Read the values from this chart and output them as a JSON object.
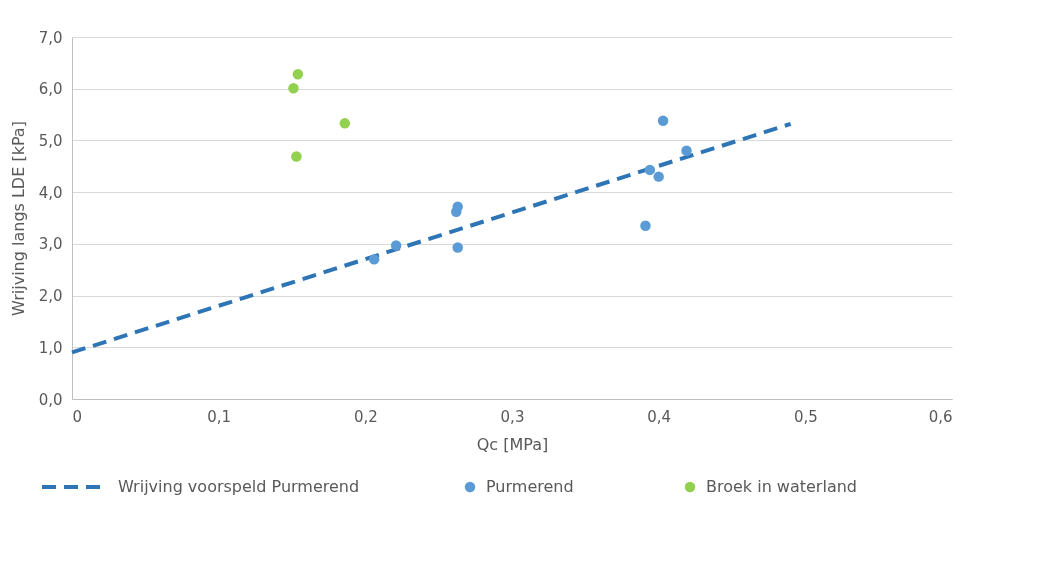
{
  "chart_data": {
    "type": "scatter",
    "xlabel": "Qc [MPa]",
    "ylabel": "Wrijving langs LDE [kPa]",
    "xlim": [
      0,
      0.6
    ],
    "xticks": [
      0,
      {
        "value": 0.1,
        "label": "0,1"
      },
      {
        "value": 0.2,
        "label": "0,2"
      },
      {
        "value": 0.3,
        "label": "0,3"
      },
      {
        "value": 0.4,
        "label": "0,4"
      },
      {
        "value": 0.5,
        "label": "0,5"
      },
      {
        "value": 0.6,
        "label": "0,6"
      }
    ],
    "ylim": [
      0,
      7
    ],
    "yticks": [
      {
        "value": 0,
        "label": "0,0"
      },
      {
        "value": 1,
        "label": "1,0"
      },
      {
        "value": 2,
        "label": "2,0"
      },
      {
        "value": 3,
        "label": "3,0"
      },
      {
        "value": 4,
        "label": "4,0"
      },
      {
        "value": 5,
        "label": "5,0"
      },
      {
        "value": 6,
        "label": "6,0"
      },
      {
        "value": 7,
        "label": "7,0"
      }
    ],
    "grid": "y",
    "legend": "bottom",
    "marker": "circle",
    "series": [
      {
        "name": "Wrijving voorspeld Purmerend",
        "type": "line",
        "line_style": "dashed",
        "marker": "none",
        "color": "#2e75b6",
        "x": [
          0,
          0.49
        ],
        "values": [
          0.9,
          5.32
        ]
      },
      {
        "name": "Purmerend",
        "color": "#5b9bd5",
        "x": [
          0.206,
          0.221,
          0.262,
          0.263,
          0.263,
          0.403,
          0.419,
          0.394,
          0.4,
          0.391
        ],
        "values": [
          2.7,
          2.97,
          3.62,
          3.72,
          2.93,
          5.38,
          4.8,
          4.43,
          4.3,
          3.35
        ]
      },
      {
        "name": "Broek in waterland",
        "color": "#92d050",
        "x": [
          0.154,
          0.151,
          0.186,
          0.153
        ],
        "values": [
          6.28,
          6.01,
          5.33,
          4.69
        ]
      }
    ]
  }
}
